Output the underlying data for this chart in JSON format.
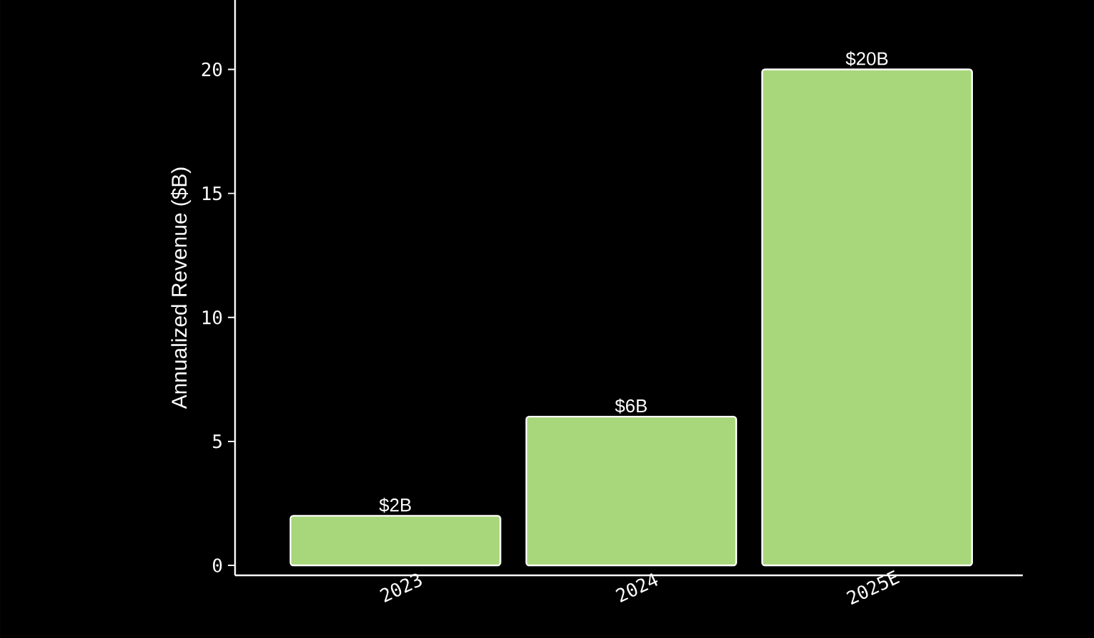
{
  "chart_data": {
    "type": "bar",
    "ylabel": "Annualized Revenue ($B)",
    "categories": [
      "2023",
      "2024",
      "2025E"
    ],
    "values": [
      2,
      6,
      20
    ],
    "value_labels": [
      "$2B",
      "$6B",
      "$20B"
    ],
    "color": "#a8d67a",
    "ylim": [
      -0.4,
      22.8
    ],
    "yticks": [
      0,
      5,
      10,
      15,
      20
    ]
  }
}
